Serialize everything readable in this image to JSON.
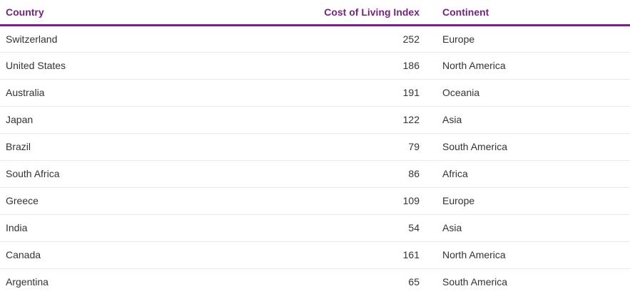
{
  "table": {
    "headers": {
      "country": "Country",
      "cost": "Cost of Living Index",
      "continent": "Continent"
    },
    "rows": [
      {
        "country": "Switzerland",
        "cost": "252",
        "continent": "Europe"
      },
      {
        "country": "United States",
        "cost": "186",
        "continent": "North America"
      },
      {
        "country": "Australia",
        "cost": "191",
        "continent": "Oceania"
      },
      {
        "country": "Japan",
        "cost": "122",
        "continent": "Asia"
      },
      {
        "country": "Brazil",
        "cost": "79",
        "continent": "South America"
      },
      {
        "country": "South Africa",
        "cost": "86",
        "continent": "Africa"
      },
      {
        "country": "Greece",
        "cost": "109",
        "continent": "Europe"
      },
      {
        "country": "India",
        "cost": "54",
        "continent": "Asia"
      },
      {
        "country": "Canada",
        "cost": "161",
        "continent": "North America"
      },
      {
        "country": "Argentina",
        "cost": "65",
        "continent": "South America"
      }
    ]
  },
  "colors": {
    "header_accent": "#74237e",
    "row_text": "#333333",
    "row_divider": "#e9e9e9"
  }
}
